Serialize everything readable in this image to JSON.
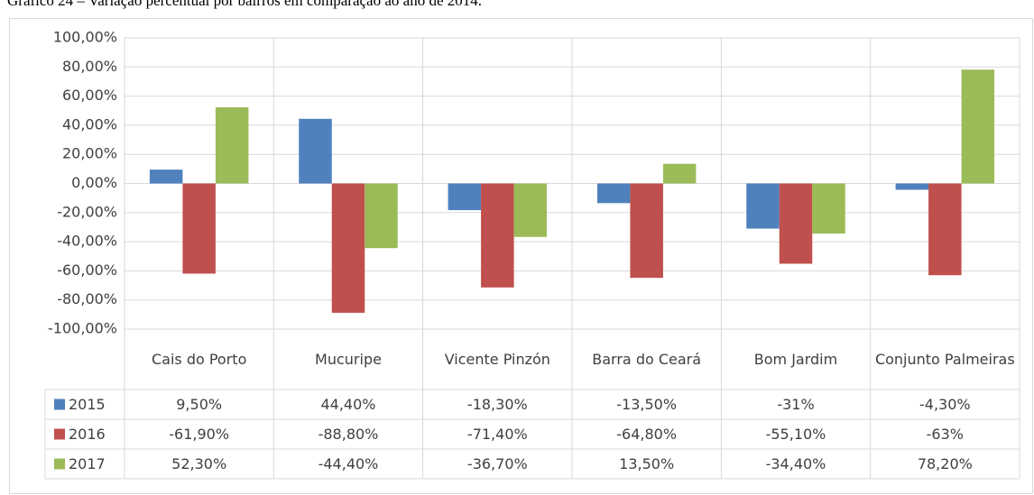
{
  "chart_data": {
    "type": "bar",
    "title": "Gráfico 24 – Variação percentual por bairros em comparação ao ano de 2014.",
    "categories": [
      "Cais do Porto",
      "Mucuripe",
      "Vicente Pinzón",
      "Barra do Ceará",
      "Bom Jardim",
      "Conjunto Palmeiras"
    ],
    "series": [
      {
        "name": "2015",
        "color": "#4f81bd",
        "values": [
          9.5,
          44.4,
          -18.3,
          -13.5,
          -31,
          -4.3
        ],
        "value_labels": [
          "9,50%",
          "44,40%",
          "-18,30%",
          "-13,50%",
          "-31%",
          "-4,30%"
        ]
      },
      {
        "name": "2016",
        "color": "#c0504d",
        "values": [
          -61.9,
          -88.8,
          -71.4,
          -64.8,
          -55.1,
          -63
        ],
        "value_labels": [
          "-61,90%",
          "-88,80%",
          "-71,40%",
          "-64,80%",
          "-55,10%",
          "-63%"
        ]
      },
      {
        "name": "2017",
        "color": "#9bbb59",
        "values": [
          52.3,
          -44.4,
          -36.7,
          13.5,
          -34.4,
          78.2
        ],
        "value_labels": [
          "52,30%",
          "-44,40%",
          "-36,70%",
          "13,50%",
          "-34,40%",
          "78,20%"
        ]
      }
    ],
    "ylim": [
      -100,
      100
    ],
    "yticks": [
      {
        "value": 100,
        "label": "100,00%"
      },
      {
        "value": 80,
        "label": "80,00%"
      },
      {
        "value": 60,
        "label": "60,00%"
      },
      {
        "value": 40,
        "label": "40,00%"
      },
      {
        "value": 20,
        "label": "20,00%"
      },
      {
        "value": 0,
        "label": "0,00%"
      },
      {
        "value": -20,
        "label": "-20,00%"
      },
      {
        "value": -40,
        "label": "-40,00%"
      },
      {
        "value": -60,
        "label": "-60,00%"
      },
      {
        "value": -80,
        "label": "-80,00%"
      },
      {
        "value": -100,
        "label": "-100,00%"
      }
    ],
    "grid": true
  }
}
